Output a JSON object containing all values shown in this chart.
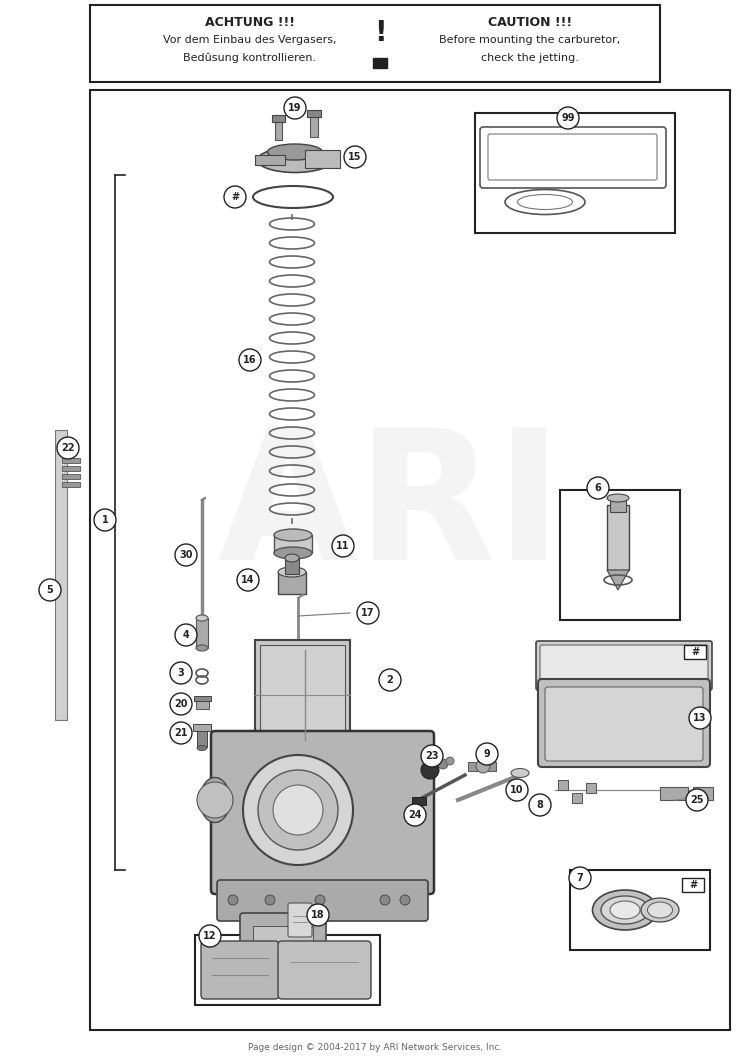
{
  "bg_color": "#ffffff",
  "warn_text_left1": "ACHTUNG !!!",
  "warn_text_left2": "Vor dem Einbau des Vergasers,",
  "warn_text_left3": "Bedûsung kontrollieren.",
  "warn_text_right1": "CAUTION !!!",
  "warn_text_right2": "Before mounting the carburetor,",
  "warn_text_right3": "check the jetting.",
  "footer": "Page design © 2004-2017 by ARI Network Services, Inc.",
  "watermark": "ARI"
}
